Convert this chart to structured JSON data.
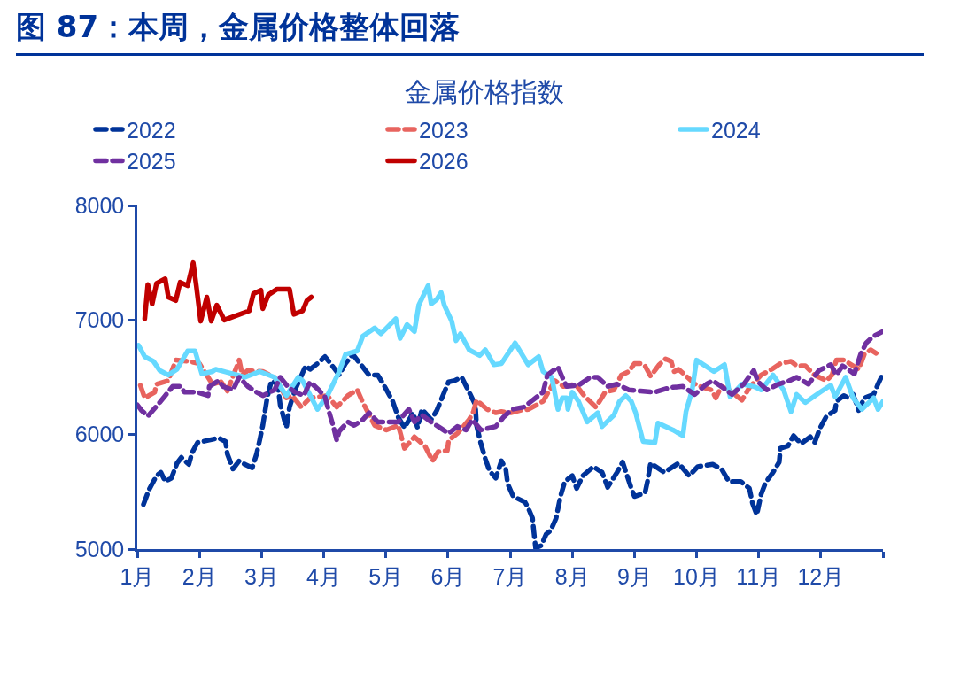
{
  "chart_data": {
    "type": "line",
    "title": "图 87：本周，金属价格整体回落",
    "subtitle": "金属价格指数",
    "xlim": [
      1,
      13
    ],
    "xticks": [
      {
        "value": 1,
        "label": "1月"
      },
      {
        "value": 2,
        "label": "2月"
      },
      {
        "value": 3,
        "label": "3月"
      },
      {
        "value": 4,
        "label": "4月"
      },
      {
        "value": 5,
        "label": "5月"
      },
      {
        "value": 6,
        "label": "6月"
      },
      {
        "value": 7,
        "label": "7月"
      },
      {
        "value": 8,
        "label": "8月"
      },
      {
        "value": 9,
        "label": "9月"
      },
      {
        "value": 10,
        "label": "10月"
      },
      {
        "value": 11,
        "label": "11月"
      },
      {
        "value": 12,
        "label": "12月"
      },
      {
        "value": 13,
        "label": null
      }
    ],
    "ylim": [
      5000,
      8000
    ],
    "yticks": [
      5000,
      6000,
      7000,
      8000
    ],
    "grid": false,
    "legend": "top",
    "marker": "none",
    "series": [
      {
        "name": "2022",
        "color": "#003399",
        "line_style": "dashed",
        "x": [
          1.1,
          1.19,
          1.31,
          1.38,
          1.45,
          1.55,
          1.64,
          1.71,
          1.83,
          1.88,
          1.97,
          2.31,
          2.42,
          2.45,
          2.54,
          2.64,
          2.73,
          2.85,
          2.92,
          2.97,
          3.02,
          3.09,
          3.16,
          3.26,
          3.3,
          3.4,
          3.45,
          3.54,
          3.71,
          3.78,
          3.9,
          4.02,
          4.11,
          4.25,
          4.35,
          4.47,
          4.54,
          4.73,
          4.87,
          4.96,
          5.11,
          5.2,
          5.3,
          5.44,
          5.51,
          5.58,
          5.73,
          5.82,
          5.91,
          6.01,
          6.1,
          6.22,
          6.34,
          6.44,
          6.46,
          6.53,
          6.6,
          6.67,
          6.77,
          6.86,
          6.93,
          6.96,
          7.05,
          7.24,
          7.29,
          7.36,
          7.38,
          7.41,
          7.5,
          7.58,
          7.65,
          7.74,
          7.81,
          7.88,
          8.0,
          8.07,
          8.17,
          8.34,
          8.48,
          8.57,
          8.72,
          8.81,
          8.95,
          9.0,
          9.17,
          9.21,
          9.26,
          9.48,
          9.71,
          9.88,
          10.02,
          10.26,
          10.4,
          10.52,
          10.71,
          10.85,
          10.9,
          10.97,
          11.04,
          11.11,
          11.23,
          11.33,
          11.35,
          11.47,
          11.56,
          11.68,
          11.83,
          11.9,
          11.99,
          12.09,
          12.23,
          12.25,
          12.37,
          12.44,
          12.52,
          12.61,
          12.7,
          12.85,
          12.92,
          12.99
        ],
        "values": [
          5390,
          5520,
          5640,
          5670,
          5590,
          5620,
          5750,
          5800,
          5740,
          5840,
          5930,
          5970,
          5940,
          5830,
          5700,
          5770,
          5740,
          5710,
          5830,
          5950,
          6080,
          6320,
          6470,
          6440,
          6260,
          6060,
          6240,
          6390,
          6600,
          6570,
          6620,
          6680,
          6620,
          6520,
          6620,
          6700,
          6650,
          6520,
          6520,
          6440,
          6290,
          6150,
          6060,
          6190,
          6060,
          6220,
          6130,
          6210,
          6330,
          6460,
          6470,
          6500,
          6370,
          6260,
          6080,
          5920,
          5790,
          5680,
          5620,
          5770,
          5700,
          5570,
          5460,
          5410,
          5360,
          5270,
          5160,
          5010,
          5030,
          5130,
          5160,
          5270,
          5460,
          5590,
          5640,
          5530,
          5640,
          5720,
          5670,
          5540,
          5670,
          5760,
          5530,
          5460,
          5490,
          5590,
          5750,
          5670,
          5750,
          5640,
          5720,
          5740,
          5700,
          5590,
          5590,
          5530,
          5400,
          5300,
          5480,
          5580,
          5670,
          5760,
          5880,
          5900,
          5990,
          5920,
          5980,
          5930,
          6060,
          6160,
          6210,
          6290,
          6340,
          6320,
          6350,
          6210,
          6320,
          6350,
          6440,
          6520
        ]
      },
      {
        "name": "2023",
        "color": "#e8645f",
        "line_style": "dashed",
        "x": [
          1.05,
          1.12,
          1.28,
          1.31,
          1.5,
          1.62,
          1.83,
          2.0,
          2.14,
          2.21,
          2.35,
          2.45,
          2.64,
          2.69,
          2.78,
          3.02,
          3.21,
          3.4,
          3.49,
          3.64,
          3.78,
          4.06,
          4.21,
          4.39,
          4.54,
          4.63,
          4.82,
          5.01,
          5.2,
          5.3,
          5.46,
          5.63,
          5.75,
          5.84,
          5.99,
          6.01,
          6.15,
          6.34,
          6.41,
          6.46,
          6.63,
          6.77,
          6.86,
          7.01,
          7.15,
          7.29,
          7.43,
          7.53,
          7.72,
          7.86,
          8.05,
          8.19,
          8.38,
          8.53,
          8.67,
          8.79,
          8.91,
          9.0,
          9.1,
          9.17,
          9.26,
          9.4,
          9.5,
          9.59,
          9.64,
          9.71,
          10.0,
          10.24,
          10.31,
          10.4,
          10.52,
          10.73,
          10.85,
          11.04,
          11.21,
          11.35,
          11.52,
          11.61,
          11.75,
          11.9,
          12.09,
          12.18,
          12.25,
          12.37,
          12.52,
          12.61,
          12.7,
          12.8,
          12.89
        ],
        "values": [
          6430,
          6320,
          6370,
          6440,
          6470,
          6650,
          6640,
          6620,
          6500,
          6440,
          6460,
          6380,
          6650,
          6520,
          6560,
          6550,
          6500,
          6320,
          6340,
          6240,
          6320,
          6340,
          6240,
          6340,
          6390,
          6280,
          6080,
          6040,
          6080,
          5880,
          5980,
          5900,
          5770,
          5850,
          5860,
          5950,
          6010,
          6130,
          6200,
          6300,
          6220,
          6190,
          6200,
          6190,
          6210,
          6220,
          6260,
          6290,
          6470,
          6420,
          6440,
          6340,
          6240,
          6370,
          6390,
          6520,
          6550,
          6620,
          6620,
          6600,
          6510,
          6610,
          6660,
          6640,
          6550,
          6570,
          6430,
          6390,
          6320,
          6420,
          6390,
          6300,
          6410,
          6520,
          6570,
          6620,
          6640,
          6600,
          6600,
          6520,
          6470,
          6520,
          6650,
          6650,
          6600,
          6570,
          6700,
          6740,
          6710
        ]
      },
      {
        "name": "2024",
        "color": "#66d9ff",
        "line_style": "solid",
        "x": [
          1.02,
          1.12,
          1.26,
          1.36,
          1.5,
          1.64,
          1.81,
          1.93,
          2.04,
          2.21,
          2.26,
          2.61,
          2.73,
          2.97,
          3.21,
          3.3,
          3.4,
          3.59,
          3.66,
          3.9,
          4.06,
          4.25,
          4.35,
          4.54,
          4.63,
          4.82,
          4.92,
          5.16,
          5.23,
          5.34,
          5.46,
          5.53,
          5.68,
          5.73,
          5.82,
          5.89,
          5.94,
          6.06,
          6.13,
          6.2,
          6.34,
          6.51,
          6.6,
          6.74,
          6.86,
          7.08,
          7.29,
          7.46,
          7.53,
          7.67,
          7.77,
          7.84,
          7.91,
          7.93,
          8.0,
          8.1,
          8.24,
          8.41,
          8.48,
          8.67,
          8.76,
          8.86,
          8.95,
          9.02,
          9.14,
          9.33,
          9.38,
          9.62,
          9.78,
          9.83,
          9.93,
          10.0,
          10.28,
          10.45,
          10.54,
          10.73,
          10.92,
          11.04,
          11.23,
          11.4,
          11.52,
          11.61,
          11.75,
          11.99,
          12.16,
          12.23,
          12.4,
          12.52,
          12.66,
          12.85,
          12.92,
          13.0
        ],
        "values": [
          6780,
          6680,
          6640,
          6560,
          6520,
          6570,
          6730,
          6730,
          6530,
          6550,
          6570,
          6520,
          6500,
          6550,
          6500,
          6420,
          6340,
          6500,
          6470,
          6220,
          6340,
          6550,
          6700,
          6730,
          6860,
          6930,
          6880,
          7010,
          6840,
          6960,
          6900,
          7130,
          7300,
          7140,
          7180,
          7240,
          7130,
          6990,
          6820,
          6880,
          6740,
          6690,
          6740,
          6610,
          6620,
          6800,
          6610,
          6680,
          6550,
          6500,
          6220,
          6320,
          6320,
          6220,
          6370,
          6290,
          6110,
          6190,
          6070,
          6170,
          6290,
          6340,
          6290,
          6190,
          5940,
          5930,
          6100,
          6040,
          5990,
          6200,
          6390,
          6650,
          6550,
          6610,
          6330,
          6440,
          6420,
          6390,
          6520,
          6390,
          6200,
          6350,
          6280,
          6370,
          6430,
          6330,
          6500,
          6320,
          6220,
          6320,
          6220,
          6290
        ]
      },
      {
        "name": "2025",
        "color": "#7030a0",
        "line_style": "dashed",
        "x": [
          1.0,
          1.07,
          1.17,
          1.36,
          1.45,
          1.57,
          1.69,
          1.76,
          1.97,
          2.14,
          2.16,
          2.31,
          2.38,
          2.54,
          2.64,
          2.78,
          2.92,
          3.02,
          3.21,
          3.3,
          3.42,
          3.54,
          3.68,
          3.78,
          3.92,
          4.02,
          4.09,
          4.16,
          4.21,
          4.25,
          4.39,
          4.49,
          4.63,
          4.73,
          4.87,
          5.2,
          5.27,
          5.37,
          5.46,
          5.58,
          5.73,
          5.87,
          6.01,
          6.15,
          6.29,
          6.39,
          6.53,
          6.77,
          6.89,
          7.03,
          7.22,
          7.34,
          7.53,
          7.6,
          7.77,
          7.84,
          7.91,
          8.1,
          8.29,
          8.41,
          8.57,
          8.72,
          8.91,
          9.1,
          9.33,
          9.57,
          9.78,
          9.97,
          10.16,
          10.26,
          10.4,
          10.57,
          10.76,
          10.92,
          10.99,
          11.13,
          11.32,
          11.49,
          11.61,
          11.8,
          11.97,
          12.16,
          12.25,
          12.35,
          12.54,
          12.64,
          12.73,
          12.85,
          13.0
        ],
        "values": [
          6260,
          6210,
          6160,
          6280,
          6340,
          6420,
          6420,
          6370,
          6370,
          6340,
          6420,
          6470,
          6420,
          6390,
          6500,
          6420,
          6370,
          6340,
          6390,
          6500,
          6420,
          6370,
          6340,
          6460,
          6390,
          6330,
          6190,
          6060,
          5950,
          6030,
          6110,
          6080,
          6130,
          6190,
          6110,
          6110,
          6160,
          6220,
          6110,
          6170,
          6110,
          6060,
          6010,
          6070,
          6040,
          6130,
          6040,
          6070,
          6150,
          6220,
          6240,
          6290,
          6370,
          6520,
          6590,
          6500,
          6420,
          6430,
          6500,
          6500,
          6420,
          6440,
          6390,
          6380,
          6370,
          6410,
          6420,
          6350,
          6440,
          6470,
          6420,
          6350,
          6440,
          6560,
          6460,
          6390,
          6440,
          6470,
          6500,
          6440,
          6560,
          6610,
          6520,
          6600,
          6530,
          6700,
          6800,
          6860,
          6900
        ]
      },
      {
        "name": "2026",
        "color": "#c00000",
        "line_style": "solid",
        "x": [
          1.12,
          1.17,
          1.24,
          1.31,
          1.45,
          1.5,
          1.62,
          1.69,
          1.81,
          1.9,
          1.95,
          2.02,
          2.12,
          2.19,
          2.28,
          2.4,
          2.8,
          2.87,
          2.99,
          3.02,
          3.11,
          3.25,
          3.45,
          3.52,
          3.66,
          3.73,
          3.8
        ],
        "values": [
          7010,
          7310,
          7140,
          7320,
          7360,
          7200,
          7170,
          7330,
          7300,
          7500,
          7300,
          6990,
          7200,
          6990,
          7130,
          7000,
          7080,
          7230,
          7260,
          7100,
          7220,
          7270,
          7270,
          7050,
          7080,
          7170,
          7200
        ]
      }
    ]
  }
}
